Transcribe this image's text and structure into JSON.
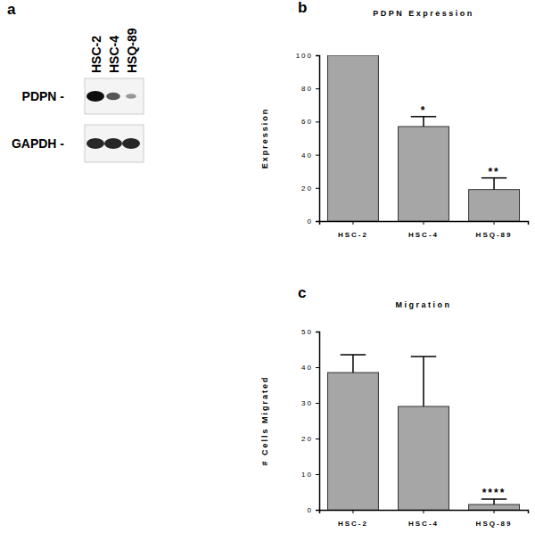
{
  "blot": {
    "panel_label": "a",
    "lanes": [
      "HSC-2",
      "HSC-4",
      "HSQ-89"
    ],
    "rows": [
      "PDPN -",
      "GAPDH -"
    ]
  },
  "chart_data": [
    {
      "type": "bar",
      "panel_label": "b",
      "title": "PDPN Expression",
      "y_label": "Expression",
      "categories": [
        "HSC-2",
        "HSC-4",
        "HSQ-89"
      ],
      "values": [
        100,
        57,
        19
      ],
      "errors": [
        0,
        6,
        7
      ],
      "color": "#a6a6a6",
      "ylim": [
        0,
        100
      ],
      "yticks": [
        0,
        20,
        40,
        60,
        80,
        100
      ],
      "annotations": [
        {
          "text": "*",
          "x": "HSC-4"
        },
        {
          "text": "**",
          "x": "HSQ-89"
        }
      ]
    },
    {
      "type": "bar",
      "panel_label": "c",
      "title": "Migration",
      "y_label": "# Cells Migrated",
      "categories": [
        "HSC-2",
        "HSC-4",
        "HSQ-89"
      ],
      "values": [
        38.5,
        29,
        1.5
      ],
      "errors": [
        5,
        14,
        1.5
      ],
      "color": "#a6a6a6",
      "ylim": [
        0,
        50
      ],
      "yticks": [
        0,
        10,
        20,
        30,
        40,
        50
      ],
      "annotations": [
        {
          "text": "****",
          "x": "HSQ-89"
        }
      ]
    }
  ]
}
